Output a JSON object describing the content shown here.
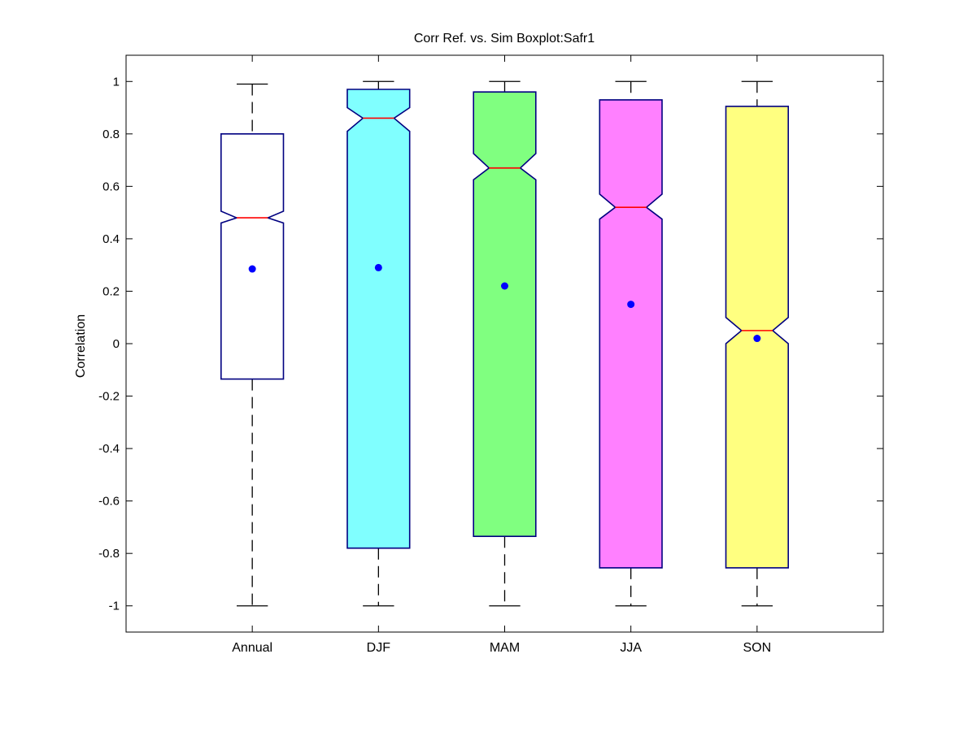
{
  "chart_data": {
    "type": "boxplot",
    "title": "Corr Ref. vs. Sim Boxplot:Safr1",
    "xlabel": "",
    "ylabel": "Correlation",
    "ylim": [
      -1.1,
      1.1
    ],
    "yticks": [
      -1,
      -0.8,
      -0.6,
      -0.4,
      -0.2,
      0,
      0.2,
      0.4,
      0.6,
      0.8,
      1
    ],
    "ytick_labels": [
      "-1",
      "-0.8",
      "-0.6",
      "-0.4",
      "-0.2",
      "0",
      "0.2",
      "0.4",
      "0.6",
      "0.8",
      "1"
    ],
    "grid": false,
    "notched": true,
    "colors": {
      "median_line": "#ff0000",
      "box_edge": "#000080",
      "mean_marker": "#0000ff",
      "whisker": "#000000"
    },
    "categories": [
      "Annual",
      "DJF",
      "MAM",
      "JJA",
      "SON"
    ],
    "boxes": [
      {
        "label": "Annual",
        "fill": "#ffffff",
        "whisker_low": -1.0,
        "q1": -0.135,
        "median": 0.48,
        "q3": 0.8,
        "whisker_high": 0.99,
        "notch_low": 0.46,
        "notch_high": 0.505,
        "mean": 0.285
      },
      {
        "label": "DJF",
        "fill": "#80ffff",
        "whisker_low": -1.0,
        "q1": -0.78,
        "median": 0.86,
        "q3": 0.97,
        "whisker_high": 1.0,
        "notch_low": 0.81,
        "notch_high": 0.9,
        "mean": 0.29
      },
      {
        "label": "MAM",
        "fill": "#80ff80",
        "whisker_low": -1.0,
        "q1": -0.735,
        "median": 0.67,
        "q3": 0.96,
        "whisker_high": 1.0,
        "notch_low": 0.625,
        "notch_high": 0.725,
        "mean": 0.22
      },
      {
        "label": "JJA",
        "fill": "#ff80ff",
        "whisker_low": -1.0,
        "q1": -0.855,
        "median": 0.52,
        "q3": 0.93,
        "whisker_high": 1.0,
        "notch_low": 0.475,
        "notch_high": 0.57,
        "mean": 0.15
      },
      {
        "label": "SON",
        "fill": "#ffff80",
        "whisker_low": -1.0,
        "q1": -0.855,
        "median": 0.05,
        "q3": 0.905,
        "whisker_high": 1.0,
        "notch_low": 0.0,
        "notch_high": 0.1,
        "mean": 0.02
      }
    ]
  }
}
